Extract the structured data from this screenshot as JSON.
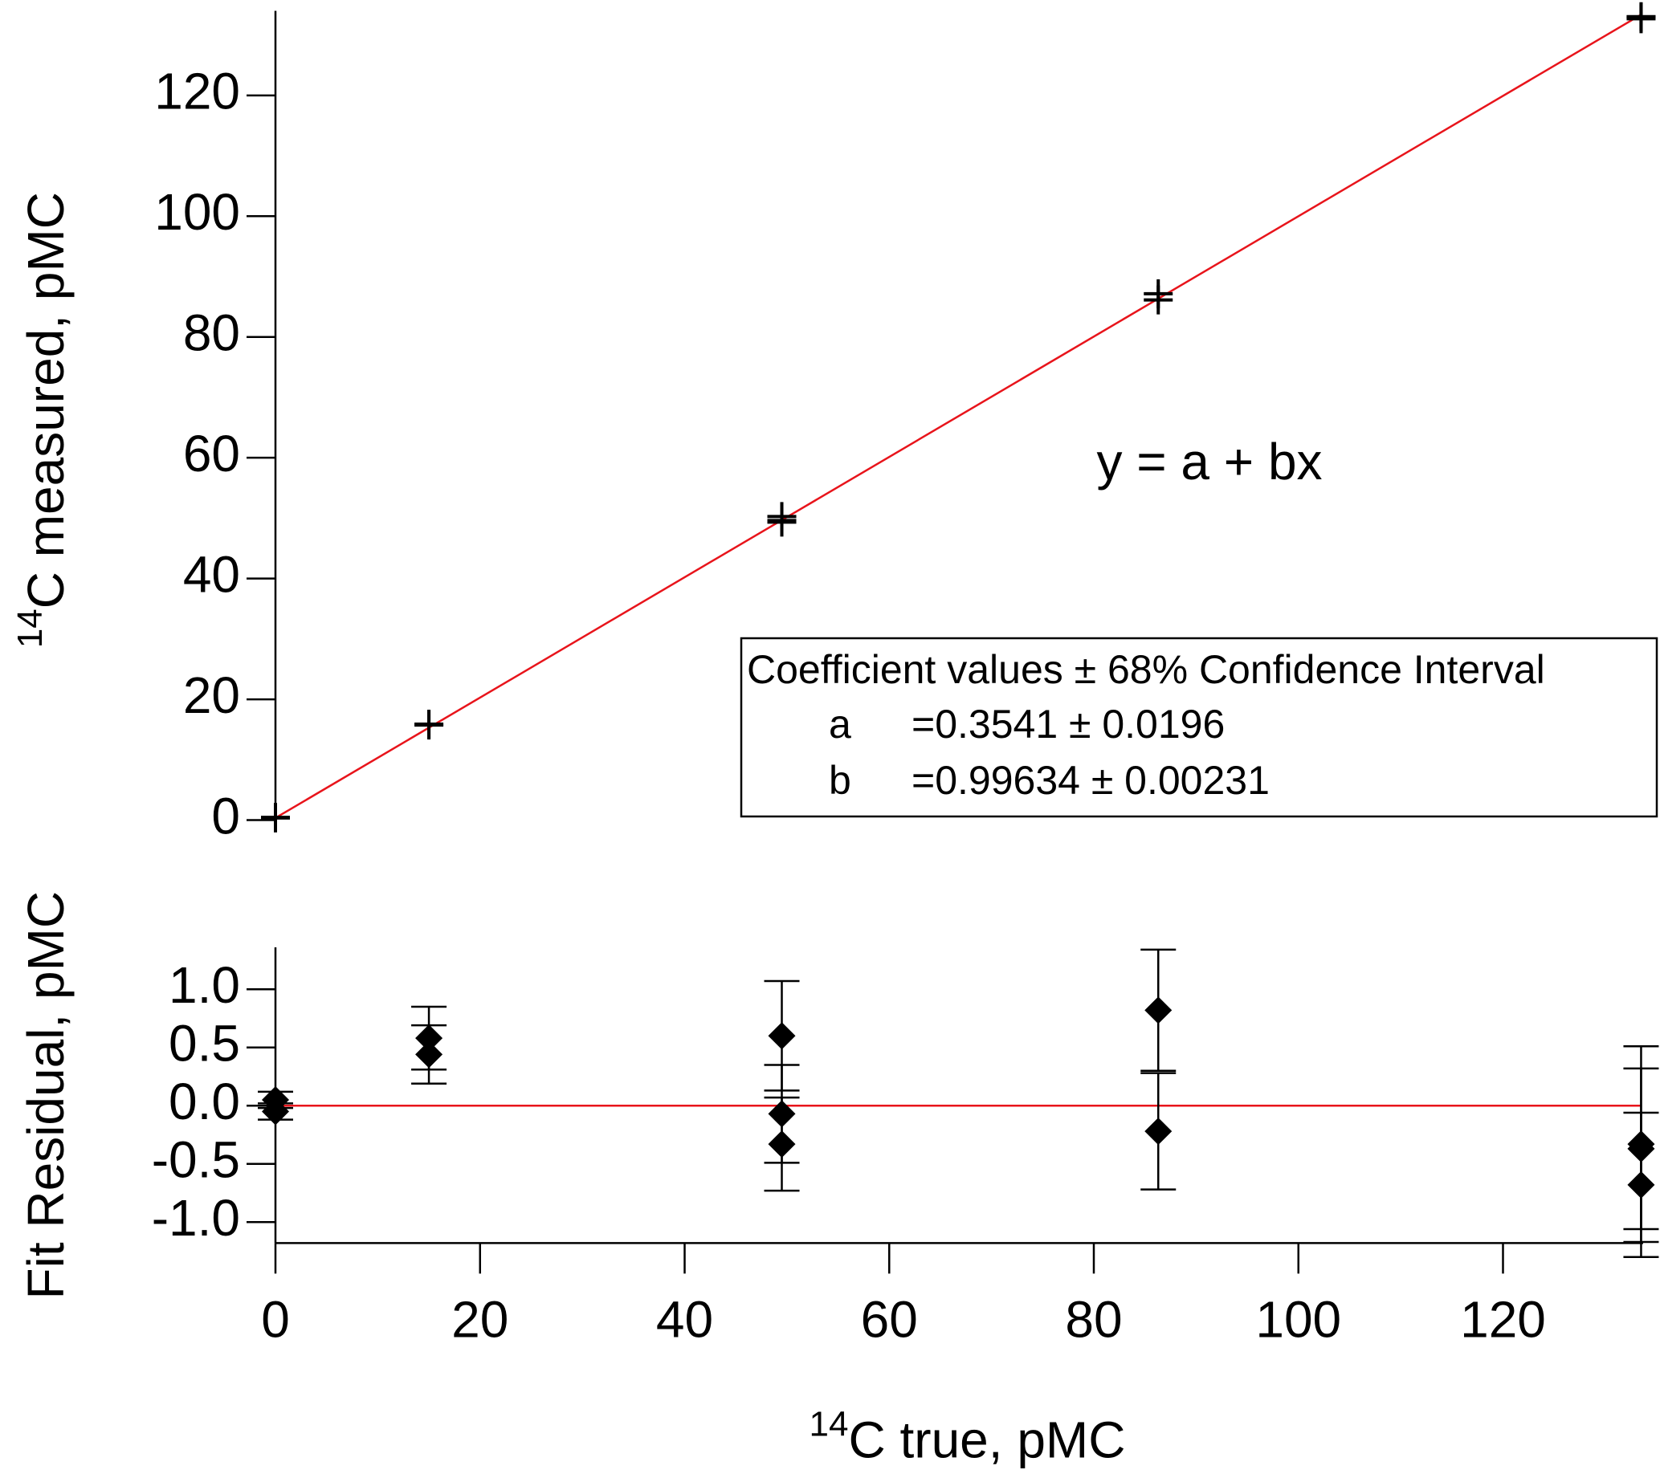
{
  "chart_data": [
    {
      "type": "scatter",
      "y_label": {
        "superscript": "14",
        "text": "C measured, pMC"
      },
      "annotation": "y = a + bx",
      "coefficients": {
        "title": "Coefficient values ± 68% Confidence Interval",
        "rows": [
          [
            "a",
            "=0.3541 ± 0.0196"
          ],
          [
            "b",
            "=0.99634 ± 0.00231"
          ]
        ]
      },
      "xlim": [
        0,
        133.7
      ],
      "ylim": [
        -1.5,
        134
      ],
      "yticks": [
        0,
        20,
        40,
        60,
        80,
        100,
        120
      ],
      "series": [
        {
          "marker": "plus",
          "color": "#000000",
          "x": [
            0,
            0,
            15,
            15,
            49.5,
            49.5,
            49.5,
            86.3,
            86.3,
            133.5,
            133.5,
            133.5
          ],
          "values": [
            0.45,
            0.35,
            15.88,
            15.74,
            50.27,
            49.6,
            49.34,
            87.16,
            86.12,
            133.03,
            132.99,
            132.68
          ]
        }
      ],
      "lines": [
        {
          "color": "#e8141b",
          "x": [
            0,
            133.5
          ],
          "values": [
            0.354,
            133.37
          ]
        }
      ]
    },
    {
      "type": "scatter",
      "y_label": "Fit Residual, pMC",
      "x_label": {
        "superscript": "14",
        "text": "C true, pMC"
      },
      "xlim": [
        0,
        133.7
      ],
      "ylim": [
        -1.18,
        1.36
      ],
      "xticks": [
        0,
        20,
        40,
        60,
        80,
        100,
        120
      ],
      "yticks": [
        {
          "value": 1.0,
          "label": "1.0"
        },
        {
          "value": 0.5,
          "label": "0.5"
        },
        {
          "value": 0,
          "label": "0.0"
        },
        {
          "value": -0.5,
          "label": "-0.5"
        },
        {
          "value": -1.0,
          "label": "-1.0"
        }
      ],
      "series": [
        {
          "marker": "diamond",
          "color": "#000000",
          "x": [
            0,
            0,
            15,
            15,
            49.5,
            49.5,
            49.5,
            86.3,
            86.3,
            133.5,
            133.5,
            133.5
          ],
          "values": [
            0.05,
            -0.05,
            0.58,
            0.44,
            0.6,
            -0.07,
            -0.33,
            0.82,
            -0.22,
            -0.33,
            -0.37,
            -0.68
          ],
          "errors": [
            0.07,
            0.07,
            0.27,
            0.25,
            0.47,
            0.42,
            0.4,
            0.52,
            0.5,
            0.84,
            0.69,
            0.62
          ]
        }
      ],
      "lines": [
        {
          "color": "#e8141b",
          "x": [
            0,
            133.5
          ],
          "values": [
            0,
            0
          ]
        }
      ]
    }
  ]
}
